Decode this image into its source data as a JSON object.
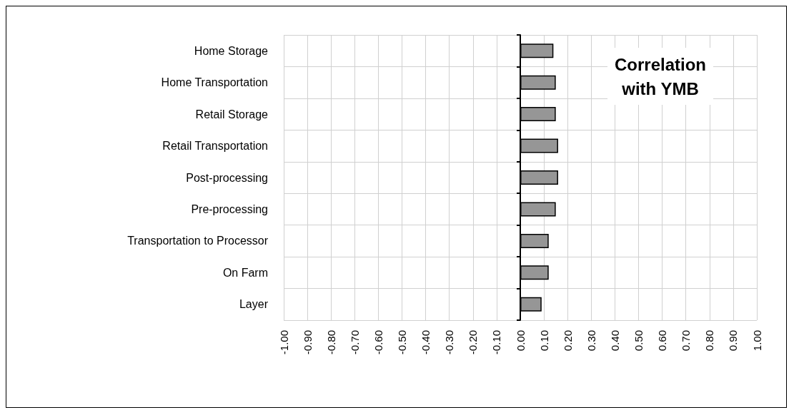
{
  "chart_data": {
    "type": "bar",
    "orientation": "horizontal",
    "title": "Correlation\nwith YMB",
    "categories": [
      "Home Storage",
      "Home Transportation",
      "Retail Storage",
      "Retail Transportation",
      "Post-processing",
      "Pre-processing",
      "Transportation to Processor",
      "On Farm",
      "Layer"
    ],
    "values": [
      0.14,
      0.15,
      0.15,
      0.16,
      0.16,
      0.15,
      0.12,
      0.12,
      0.09
    ],
    "color": "#969696",
    "xlim": [
      -1,
      1
    ],
    "xticks": [
      {
        "value": -1,
        "label": "-1.00"
      },
      {
        "value": -0.9,
        "label": "-0.90"
      },
      {
        "value": -0.8,
        "label": "-0.80"
      },
      {
        "value": -0.7,
        "label": "-0.70"
      },
      {
        "value": -0.6,
        "label": "-0.60"
      },
      {
        "value": -0.5,
        "label": "-0.50"
      },
      {
        "value": -0.4,
        "label": "-0.40"
      },
      {
        "value": -0.3,
        "label": "-0.30"
      },
      {
        "value": -0.2,
        "label": "-0.20"
      },
      {
        "value": -0.1,
        "label": "-0.10"
      },
      {
        "value": 0,
        "label": "0.00"
      },
      {
        "value": 0.1,
        "label": "0.10"
      },
      {
        "value": 0.2,
        "label": "0.20"
      },
      {
        "value": 0.3,
        "label": "0.30"
      },
      {
        "value": 0.4,
        "label": "0.40"
      },
      {
        "value": 0.5,
        "label": "0.50"
      },
      {
        "value": 0.6,
        "label": "0.60"
      },
      {
        "value": 0.7,
        "label": "0.70"
      },
      {
        "value": 0.8,
        "label": "0.80"
      },
      {
        "value": 0.9,
        "label": "0.90"
      },
      {
        "value": 1,
        "label": "1.00"
      }
    ],
    "grid": true
  }
}
